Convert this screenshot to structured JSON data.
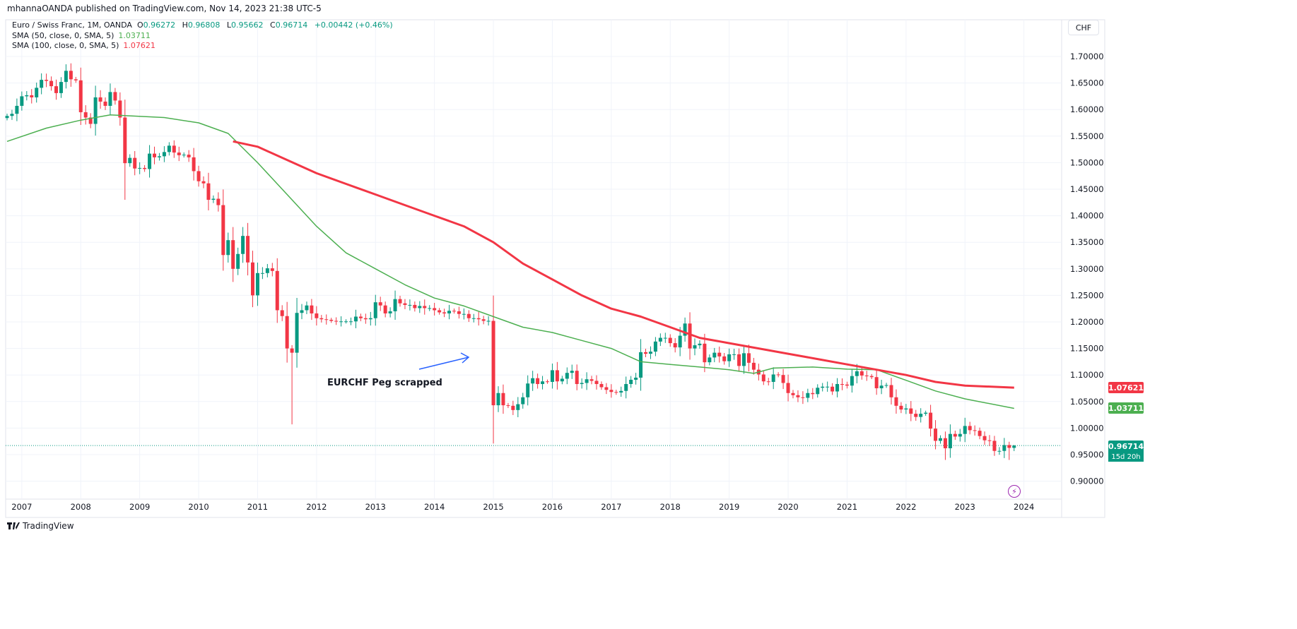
{
  "header": {
    "published": "mhannaOANDA published on TradingView.com, Nov 14, 2023 21:38 UTC-5",
    "symbol": "Euro / Swiss Franc, 1M, OANDA",
    "o_label": "O",
    "open": "0.96272",
    "h_label": "H",
    "high": "0.96808",
    "l_label": "L",
    "low": "0.95662",
    "c_label": "C",
    "close": "0.96714",
    "change": "+0.00442 (+0.46%)",
    "sma50_label": "SMA (50, close, 0, SMA, 5)",
    "sma50_value": "1.03711",
    "sma100_label": "SMA (100, close, 0, SMA, 5)",
    "sma100_value": "1.07621",
    "currency_button": "CHF"
  },
  "price_labels": {
    "sma100": "1.07621",
    "sma50": "1.03711",
    "last": "0.96714",
    "countdown": "15d 20h"
  },
  "annotation": {
    "text": "EURCHF Peg scrapped",
    "arrow_color": "#2962ff"
  },
  "footer": {
    "brand": "TradingView"
  },
  "icons": {
    "logo": "tradingview-logo-icon",
    "bolt": "lightning-icon"
  },
  "colors": {
    "up": "#089981",
    "down": "#f23645",
    "sma50": "#4caf50",
    "sma100": "#f23645",
    "grid": "#f0f3fa"
  },
  "chart_data": {
    "type": "candlestick",
    "title": "Euro / Swiss Franc, 1M, OANDA",
    "start_month": "2006-10",
    "interval": "1M",
    "x_ticks": [
      "2007",
      "2008",
      "2009",
      "2010",
      "2011",
      "2012",
      "2013",
      "2014",
      "2015",
      "2016",
      "2017",
      "2018",
      "2019",
      "2020",
      "2021",
      "2022",
      "2023",
      "2024"
    ],
    "y_ticks": [
      "1.70000",
      "1.65000",
      "1.60000",
      "1.55000",
      "1.50000",
      "1.45000",
      "1.40000",
      "1.35000",
      "1.30000",
      "1.25000",
      "1.20000",
      "1.15000",
      "1.10000",
      "1.05000",
      "1.00000",
      "0.95000",
      "0.90000"
    ],
    "ylim": [
      0.88,
      1.72
    ],
    "closes": [
      1.588,
      1.592,
      1.607,
      1.625,
      1.627,
      1.623,
      1.641,
      1.656,
      1.654,
      1.644,
      1.631,
      1.652,
      1.673,
      1.657,
      1.655,
      1.595,
      1.585,
      1.573,
      1.623,
      1.615,
      1.607,
      1.633,
      1.617,
      1.585,
      1.499,
      1.509,
      1.489,
      1.49,
      1.488,
      1.517,
      1.51,
      1.512,
      1.52,
      1.532,
      1.519,
      1.514,
      1.515,
      1.51,
      1.484,
      1.465,
      1.461,
      1.43,
      1.432,
      1.42,
      1.326,
      1.354,
      1.3,
      1.328,
      1.362,
      1.312,
      1.25,
      1.292,
      1.292,
      1.301,
      1.296,
      1.222,
      1.211,
      1.15,
      1.142,
      1.217,
      1.222,
      1.231,
      1.216,
      1.207,
      1.205,
      1.204,
      1.202,
      1.201,
      1.201,
      1.201,
      1.201,
      1.21,
      1.207,
      1.205,
      1.207,
      1.237,
      1.231,
      1.216,
      1.22,
      1.243,
      1.235,
      1.232,
      1.232,
      1.226,
      1.23,
      1.226,
      1.226,
      1.222,
      1.218,
      1.216,
      1.221,
      1.22,
      1.215,
      1.215,
      1.207,
      1.207,
      1.205,
      1.202,
      1.202,
      1.043,
      1.066,
      1.043,
      1.042,
      1.034,
      1.045,
      1.058,
      1.084,
      1.094,
      1.083,
      1.088,
      1.087,
      1.109,
      1.088,
      1.093,
      1.104,
      1.108,
      1.083,
      1.085,
      1.092,
      1.089,
      1.083,
      1.077,
      1.072,
      1.068,
      1.067,
      1.07,
      1.083,
      1.091,
      1.095,
      1.143,
      1.14,
      1.144,
      1.163,
      1.17,
      1.17,
      1.16,
      1.152,
      1.174,
      1.197,
      1.15,
      1.156,
      1.159,
      1.124,
      1.133,
      1.142,
      1.135,
      1.126,
      1.139,
      1.139,
      1.117,
      1.141,
      1.123,
      1.11,
      1.101,
      1.088,
      1.087,
      1.101,
      1.1,
      1.085,
      1.066,
      1.062,
      1.058,
      1.057,
      1.066,
      1.064,
      1.076,
      1.078,
      1.078,
      1.069,
      1.083,
      1.082,
      1.08,
      1.098,
      1.107,
      1.099,
      1.098,
      1.096,
      1.075,
      1.08,
      1.081,
      1.058,
      1.042,
      1.035,
      1.037,
      1.027,
      1.021,
      1.027,
      1.029,
      0.999,
      0.976,
      0.981,
      0.962,
      0.989,
      0.984,
      0.989,
      1.004,
      0.996,
      0.995,
      0.985,
      0.977,
      0.976,
      0.957,
      0.957,
      0.968,
      0.96272,
      0.96714
    ],
    "notable_lows": [
      {
        "month": "2008-10",
        "low": 1.43
      },
      {
        "month": "2011-08",
        "low": 1.007
      },
      {
        "month": "2015-01",
        "low": 0.971
      },
      {
        "month": "2022-09",
        "low": 0.94
      },
      {
        "month": "2023-10",
        "low": 0.94
      }
    ],
    "last_price": 0.96714,
    "sma50": [
      [
        "2006-10",
        1.54
      ],
      [
        "2007-06",
        1.565
      ],
      [
        "2008-01",
        1.58
      ],
      [
        "2008-07",
        1.59
      ],
      [
        "2009-06",
        1.585
      ],
      [
        "2010-01",
        1.575
      ],
      [
        "2010-07",
        1.555
      ],
      [
        "2011-01",
        1.5
      ],
      [
        "2011-07",
        1.44
      ],
      [
        "2012-01",
        1.38
      ],
      [
        "2012-07",
        1.33
      ],
      [
        "2013-01",
        1.3
      ],
      [
        "2013-07",
        1.27
      ],
      [
        "2014-01",
        1.245
      ],
      [
        "2014-07",
        1.23
      ],
      [
        "2015-01",
        1.21
      ],
      [
        "2015-07",
        1.19
      ],
      [
        "2016-01",
        1.18
      ],
      [
        "2016-07",
        1.165
      ],
      [
        "2017-01",
        1.15
      ],
      [
        "2017-07",
        1.125
      ],
      [
        "2018-01",
        1.12
      ],
      [
        "2018-07",
        1.115
      ],
      [
        "2019-01",
        1.11
      ],
      [
        "2019-06",
        1.103
      ],
      [
        "2019-10",
        1.113
      ],
      [
        "2020-06",
        1.115
      ],
      [
        "2021-01",
        1.111
      ],
      [
        "2021-07",
        1.11
      ],
      [
        "2022-01",
        1.09
      ],
      [
        "2022-07",
        1.07
      ],
      [
        "2023-01",
        1.055
      ],
      [
        "2023-11",
        1.03711
      ]
    ],
    "sma100": [
      [
        "2010-08",
        1.54
      ],
      [
        "2011-01",
        1.53
      ],
      [
        "2011-07",
        1.505
      ],
      [
        "2012-01",
        1.48
      ],
      [
        "2012-07",
        1.46
      ],
      [
        "2013-01",
        1.44
      ],
      [
        "2013-07",
        1.42
      ],
      [
        "2014-01",
        1.4
      ],
      [
        "2014-07",
        1.38
      ],
      [
        "2015-01",
        1.35
      ],
      [
        "2015-07",
        1.31
      ],
      [
        "2016-01",
        1.28
      ],
      [
        "2016-07",
        1.25
      ],
      [
        "2017-01",
        1.225
      ],
      [
        "2017-07",
        1.21
      ],
      [
        "2018-01",
        1.19
      ],
      [
        "2018-07",
        1.17
      ],
      [
        "2019-01",
        1.16
      ],
      [
        "2019-07",
        1.15
      ],
      [
        "2020-01",
        1.14
      ],
      [
        "2020-07",
        1.13
      ],
      [
        "2021-01",
        1.12
      ],
      [
        "2021-07",
        1.11
      ],
      [
        "2022-01",
        1.1
      ],
      [
        "2022-07",
        1.087
      ],
      [
        "2023-01",
        1.08
      ],
      [
        "2023-11",
        1.07621
      ]
    ]
  }
}
